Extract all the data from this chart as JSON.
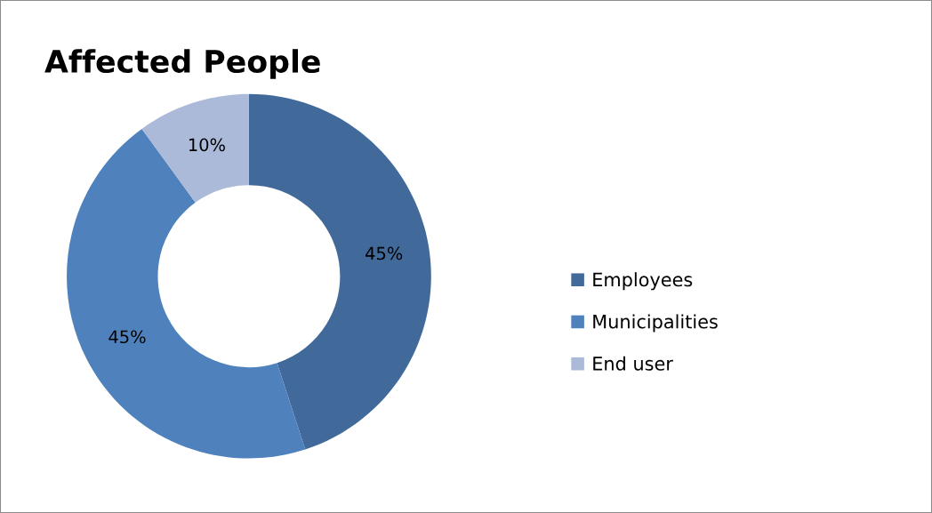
{
  "chart_data": {
    "type": "donut",
    "title": "Affected People",
    "categories": [
      "Employees",
      "Municipalities",
      "End user"
    ],
    "values": [
      45,
      45,
      10
    ],
    "colors": [
      "#416a9b",
      "#4f81bd",
      "#abbad9"
    ],
    "value_labels": [
      "45%",
      "45%",
      "10%"
    ],
    "legend": "right"
  }
}
